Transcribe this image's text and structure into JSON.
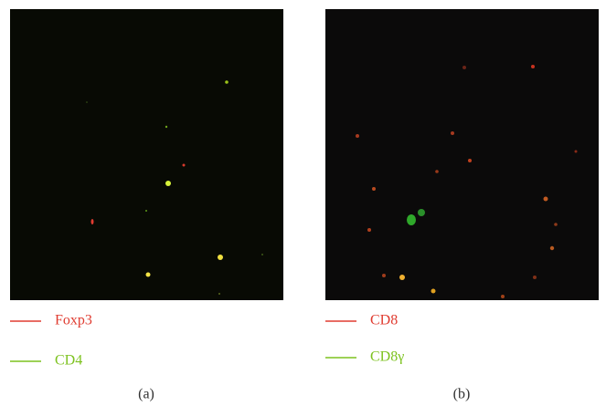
{
  "panels": [
    {
      "legend": [
        {
          "label": "Foxp3"
        },
        {
          "label": "CD4"
        }
      ],
      "caption": "(a)"
    },
    {
      "legend": [
        {
          "label": "CD8"
        },
        {
          "label": "CD8γ"
        }
      ],
      "caption": "(b)"
    }
  ]
}
